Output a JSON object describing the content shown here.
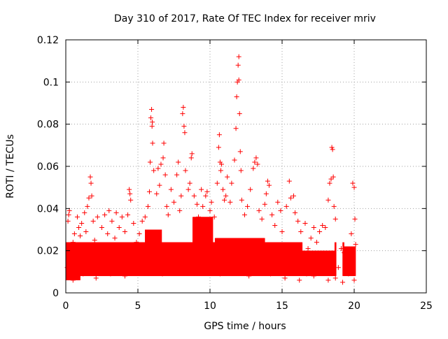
{
  "chart_data": {
    "type": "scatter",
    "title": "Day 310 of 2017, Rate Of TEC Index for receiver mriv",
    "xlabel": "GPS time / hours",
    "ylabel": "ROTI / TECUs",
    "xlim": [
      0,
      25
    ],
    "ylim": [
      0,
      0.12
    ],
    "x_ticks": [
      "0",
      "5",
      "10",
      "15",
      "20",
      "25"
    ],
    "y_ticks": [
      "0",
      "0.02",
      "0.04",
      "0.06",
      "0.08",
      "0.1",
      "0.12"
    ],
    "grid": true,
    "legend": "none",
    "marker": "+",
    "color": "#ff0000",
    "series": [
      {
        "points": [
          [
            0.1,
            0.012
          ],
          [
            0.15,
            0.034
          ],
          [
            0.2,
            0.037
          ],
          [
            0.25,
            0.039
          ],
          [
            0.3,
            0.021
          ],
          [
            0.4,
            0.015
          ],
          [
            0.5,
            0.024
          ],
          [
            0.6,
            0.028
          ],
          [
            0.7,
            0.016
          ],
          [
            0.8,
            0.036
          ],
          [
            0.9,
            0.031
          ],
          [
            1.0,
            0.027
          ],
          [
            1.1,
            0.033
          ],
          [
            1.2,
            0.022
          ],
          [
            1.3,
            0.038
          ],
          [
            1.4,
            0.029
          ],
          [
            1.5,
            0.041
          ],
          [
            1.6,
            0.045
          ],
          [
            1.7,
            0.055
          ],
          [
            1.75,
            0.052
          ],
          [
            1.8,
            0.046
          ],
          [
            1.9,
            0.034
          ],
          [
            2.0,
            0.025
          ],
          [
            2.2,
            0.036
          ],
          [
            2.4,
            0.021
          ],
          [
            2.5,
            0.031
          ],
          [
            2.7,
            0.037
          ],
          [
            2.9,
            0.028
          ],
          [
            3.0,
            0.039
          ],
          [
            3.2,
            0.034
          ],
          [
            3.4,
            0.026
          ],
          [
            3.5,
            0.038
          ],
          [
            3.7,
            0.031
          ],
          [
            3.9,
            0.036
          ],
          [
            4.1,
            0.029
          ],
          [
            4.3,
            0.037
          ],
          [
            4.4,
            0.049
          ],
          [
            4.45,
            0.047
          ],
          [
            4.5,
            0.044
          ],
          [
            4.7,
            0.033
          ],
          [
            4.9,
            0.024
          ],
          [
            5.1,
            0.028
          ],
          [
            5.3,
            0.034
          ],
          [
            5.5,
            0.036
          ],
          [
            5.7,
            0.041
          ],
          [
            5.8,
            0.048
          ],
          [
            5.85,
            0.062
          ],
          [
            5.9,
            0.083
          ],
          [
            5.95,
            0.087
          ],
          [
            6.0,
            0.081
          ],
          [
            5.98,
            0.079
          ],
          [
            6.02,
            0.071
          ],
          [
            6.1,
            0.058
          ],
          [
            6.3,
            0.047
          ],
          [
            6.4,
            0.059
          ],
          [
            6.5,
            0.051
          ],
          [
            6.6,
            0.061
          ],
          [
            6.75,
            0.064
          ],
          [
            6.8,
            0.071
          ],
          [
            6.9,
            0.056
          ],
          [
            7.0,
            0.041
          ],
          [
            7.1,
            0.037
          ],
          [
            7.3,
            0.049
          ],
          [
            7.5,
            0.043
          ],
          [
            7.7,
            0.056
          ],
          [
            7.8,
            0.062
          ],
          [
            7.9,
            0.039
          ],
          [
            8.0,
            0.046
          ],
          [
            8.1,
            0.085
          ],
          [
            8.15,
            0.088
          ],
          [
            8.2,
            0.079
          ],
          [
            8.25,
            0.076
          ],
          [
            8.3,
            0.058
          ],
          [
            8.5,
            0.049
          ],
          [
            8.6,
            0.052
          ],
          [
            8.7,
            0.064
          ],
          [
            8.75,
            0.066
          ],
          [
            8.9,
            0.046
          ],
          [
            9.1,
            0.042
          ],
          [
            9.2,
            0.036
          ],
          [
            9.4,
            0.049
          ],
          [
            9.5,
            0.041
          ],
          [
            9.7,
            0.046
          ],
          [
            9.8,
            0.048
          ],
          [
            10.0,
            0.039
          ],
          [
            10.1,
            0.043
          ],
          [
            10.3,
            0.036
          ],
          [
            10.5,
            0.052
          ],
          [
            10.6,
            0.069
          ],
          [
            10.65,
            0.075
          ],
          [
            10.7,
            0.062
          ],
          [
            10.75,
            0.058
          ],
          [
            10.8,
            0.061
          ],
          [
            10.9,
            0.049
          ],
          [
            11.0,
            0.044
          ],
          [
            11.1,
            0.046
          ],
          [
            11.2,
            0.055
          ],
          [
            11.4,
            0.043
          ],
          [
            11.5,
            0.052
          ],
          [
            11.7,
            0.063
          ],
          [
            11.8,
            0.078
          ],
          [
            11.85,
            0.093
          ],
          [
            11.9,
            0.1
          ],
          [
            11.95,
            0.108
          ],
          [
            12.0,
            0.112
          ],
          [
            12.0,
            0.101
          ],
          [
            12.05,
            0.085
          ],
          [
            12.1,
            0.067
          ],
          [
            12.15,
            0.058
          ],
          [
            12.2,
            0.044
          ],
          [
            12.4,
            0.037
          ],
          [
            12.6,
            0.041
          ],
          [
            12.8,
            0.049
          ],
          [
            13.0,
            0.059
          ],
          [
            13.1,
            0.062
          ],
          [
            13.2,
            0.064
          ],
          [
            13.3,
            0.061
          ],
          [
            13.4,
            0.039
          ],
          [
            13.6,
            0.035
          ],
          [
            13.8,
            0.042
          ],
          [
            13.9,
            0.047
          ],
          [
            14.0,
            0.053
          ],
          [
            14.1,
            0.051
          ],
          [
            14.3,
            0.037
          ],
          [
            14.5,
            0.032
          ],
          [
            14.7,
            0.043
          ],
          [
            14.9,
            0.039
          ],
          [
            15.0,
            0.029
          ],
          [
            15.3,
            0.041
          ],
          [
            15.5,
            0.053
          ],
          [
            15.6,
            0.045
          ],
          [
            15.8,
            0.046
          ],
          [
            15.9,
            0.038
          ],
          [
            16.1,
            0.034
          ],
          [
            16.3,
            0.029
          ],
          [
            16.6,
            0.033
          ],
          [
            16.8,
            0.021
          ],
          [
            17.0,
            0.026
          ],
          [
            17.2,
            0.031
          ],
          [
            17.4,
            0.024
          ],
          [
            17.6,
            0.029
          ],
          [
            17.8,
            0.032
          ],
          [
            18.0,
            0.031
          ],
          [
            18.2,
            0.044
          ],
          [
            18.3,
            0.052
          ],
          [
            18.4,
            0.054
          ],
          [
            18.45,
            0.069
          ],
          [
            18.5,
            0.068
          ],
          [
            18.55,
            0.055
          ],
          [
            18.6,
            0.041
          ],
          [
            18.7,
            0.035
          ],
          [
            18.9,
            0.012
          ],
          [
            19.1,
            0.021
          ],
          [
            19.3,
            0.019
          ],
          [
            19.5,
            0.014
          ],
          [
            19.7,
            0.018
          ],
          [
            19.8,
            0.028
          ],
          [
            19.9,
            0.052
          ],
          [
            20.0,
            0.05
          ],
          [
            20.05,
            0.035
          ],
          [
            20.1,
            0.023
          ],
          [
            0.3,
            0.008
          ],
          [
            0.5,
            0.006
          ],
          [
            0.8,
            0.011
          ],
          [
            1.2,
            0.009
          ],
          [
            1.6,
            0.014
          ],
          [
            2.1,
            0.007
          ],
          [
            2.6,
            0.012
          ],
          [
            3.1,
            0.009
          ],
          [
            3.6,
            0.013
          ],
          [
            4.1,
            0.008
          ],
          [
            4.6,
            0.015
          ],
          [
            5.1,
            0.011
          ],
          [
            5.6,
            0.018
          ],
          [
            6.2,
            0.014
          ],
          [
            6.7,
            0.009
          ],
          [
            7.2,
            0.016
          ],
          [
            7.7,
            0.012
          ],
          [
            8.2,
            0.019
          ],
          [
            8.7,
            0.011
          ],
          [
            9.2,
            0.024
          ],
          [
            9.7,
            0.017
          ],
          [
            10.2,
            0.013
          ],
          [
            10.7,
            0.009
          ],
          [
            11.2,
            0.016
          ],
          [
            11.7,
            0.011
          ],
          [
            12.2,
            0.014
          ],
          [
            12.7,
            0.008
          ],
          [
            13.2,
            0.015
          ],
          [
            13.7,
            0.011
          ],
          [
            14.2,
            0.009
          ],
          [
            14.7,
            0.013
          ],
          [
            15.2,
            0.007
          ],
          [
            15.7,
            0.012
          ],
          [
            16.2,
            0.006
          ],
          [
            16.7,
            0.009
          ],
          [
            17.2,
            0.008
          ],
          [
            17.7,
            0.011
          ],
          [
            18.2,
            0.006
          ],
          [
            18.7,
            0.007
          ],
          [
            19.2,
            0.005
          ],
          [
            19.6,
            0.009
          ],
          [
            20.0,
            0.006
          ]
        ]
      }
    ]
  }
}
